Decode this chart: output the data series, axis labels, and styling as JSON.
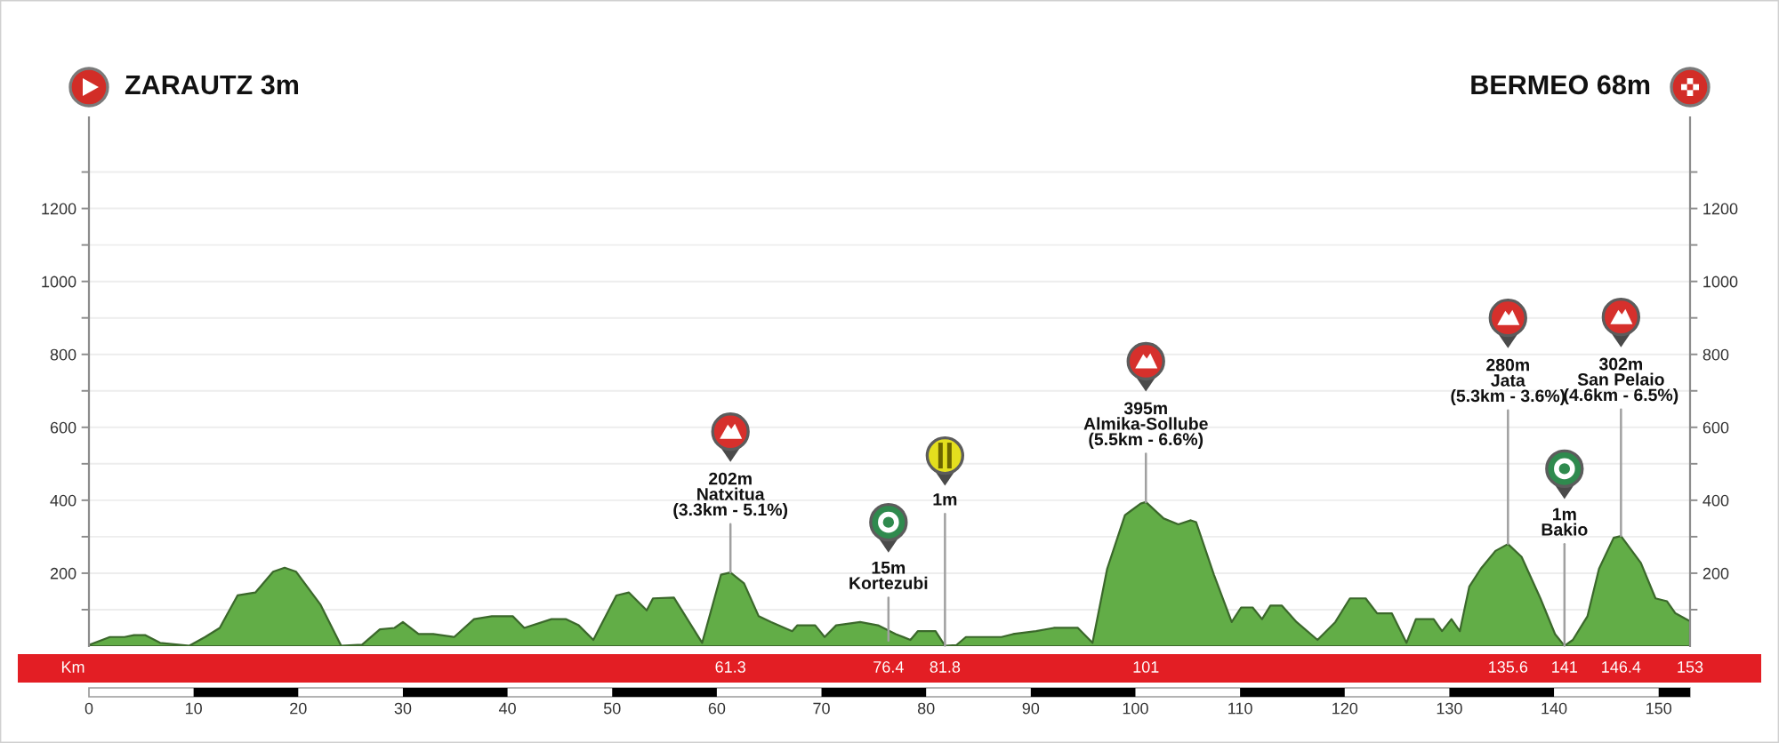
{
  "chart_data": {
    "type": "area",
    "x": [
      0,
      2.0,
      3.4,
      4.3,
      5.4,
      6.8,
      9.6,
      11.1,
      12.5,
      14.2,
      15.9,
      17.6,
      18.7,
      19.8,
      22.1,
      24.1,
      26.1,
      27.8,
      29.2,
      30.0,
      31.5,
      32.9,
      34.9,
      36.8,
      38.5,
      40.5,
      41.6,
      44.2,
      45.6,
      46.8,
      48.2,
      50.4,
      51.6,
      53.3,
      53.9,
      55.9,
      58.6,
      60.4,
      61.3,
      62.6,
      64.0,
      65.2,
      67.2,
      67.7,
      69.4,
      70.3,
      71.4,
      73.7,
      75.4,
      77.1,
      78.5,
      79.2,
      80.9,
      81.8,
      82.9,
      83.8,
      87.2,
      88.3,
      90.5,
      92.2,
      94.5,
      95.9,
      97.3,
      99.0,
      100.5,
      101,
      102.7,
      104.1,
      105.3,
      105.8,
      107.5,
      109.2,
      110.1,
      111.2,
      112.1,
      112.9,
      114.0,
      115.4,
      117.4,
      119.1,
      120.5,
      122.0,
      123.1,
      124.5,
      125.9,
      126.8,
      128.5,
      129.3,
      130.2,
      131.0,
      131.9,
      133.0,
      134.4,
      135.6,
      136.9,
      138.7,
      140.1,
      141,
      141.8,
      143.2,
      144.3,
      145.7,
      146.4,
      148.3,
      149.7,
      150.8,
      151.6,
      153
    ],
    "series": [
      {
        "color": "#62ad47",
        "values": [
          3,
          25,
          25,
          30,
          30,
          9,
          1,
          25,
          50,
          139,
          147,
          204,
          215,
          204,
          115,
          1,
          4,
          46,
          50,
          66,
          33,
          33,
          25,
          74,
          82,
          82,
          50,
          74,
          74,
          57,
          17,
          139,
          147,
          98,
          131,
          133,
          9,
          196,
          202,
          172,
          82,
          66,
          41,
          57,
          57,
          25,
          57,
          66,
          57,
          33,
          17,
          41,
          41,
          1,
          3,
          25,
          25,
          33,
          41,
          50,
          50,
          9,
          212,
          359,
          391,
          395,
          350,
          334,
          345,
          340,
          196,
          66,
          106,
          106,
          74,
          111,
          111,
          66,
          17,
          66,
          131,
          131,
          90,
          90,
          9,
          74,
          74,
          41,
          74,
          41,
          163,
          212,
          261,
          280,
          245,
          131,
          33,
          1,
          17,
          82,
          212,
          297,
          302,
          228,
          131,
          123,
          90,
          68
        ]
      }
    ],
    "xlim": [
      0,
      153
    ],
    "xticks": [
      0,
      10,
      20,
      30,
      40,
      50,
      60,
      70,
      80,
      90,
      100,
      110,
      120,
      130,
      140,
      150
    ],
    "ylim": [
      0,
      1450
    ],
    "yticks": [
      {
        "value": 100,
        "label": null
      },
      200,
      {
        "value": 300,
        "label": null
      },
      400,
      {
        "value": 500,
        "label": null
      },
      600,
      {
        "value": 700,
        "label": null
      },
      800,
      {
        "value": 900,
        "label": null
      },
      1000,
      {
        "value": 1100,
        "label": null
      },
      1200,
      {
        "value": 1300,
        "label": null
      }
    ],
    "y2lim": [
      0,
      1450
    ],
    "y2ticks": [
      {
        "value": 100,
        "label": null
      },
      200,
      {
        "value": 300,
        "label": null
      },
      400,
      {
        "value": 500,
        "label": null
      },
      600,
      {
        "value": 700,
        "label": null
      },
      800,
      {
        "value": 900,
        "label": null
      },
      1000,
      {
        "value": 1100,
        "label": null
      },
      1200,
      {
        "value": 1300,
        "label": null
      }
    ],
    "x2label": "Km",
    "x2lim": [
      0,
      153
    ],
    "x2ticks": [
      61.3,
      76.4,
      81.8,
      101,
      135.6,
      141,
      146.4,
      153
    ],
    "grid": "y",
    "annotations": [
      "ZARAUTZ 3m",
      "BERMEO 68m",
      {
        "text": "202m\nNatxitua\n(3.3km - 5.1%)",
        "x": 61.3,
        "y": 202
      },
      {
        "text": "15m\nKortezubi",
        "x": 76.4,
        "y": 15
      },
      {
        "text": "1m",
        "x": 81.8,
        "y": 1
      },
      {
        "text": "395m\nAlmika-Sollube\n(5.5km - 6.6%)",
        "x": 101,
        "y": 395
      },
      {
        "text": "280m\nJata\n(5.3km - 3.6%)",
        "x": 135.6,
        "y": 280
      },
      {
        "text": "1m\nBakio",
        "x": 141,
        "y": 1
      },
      {
        "text": "302m\nSan Pelaio\n(4.6km - 6.5%)",
        "x": 146.4,
        "y": 302
      }
    ]
  }
}
